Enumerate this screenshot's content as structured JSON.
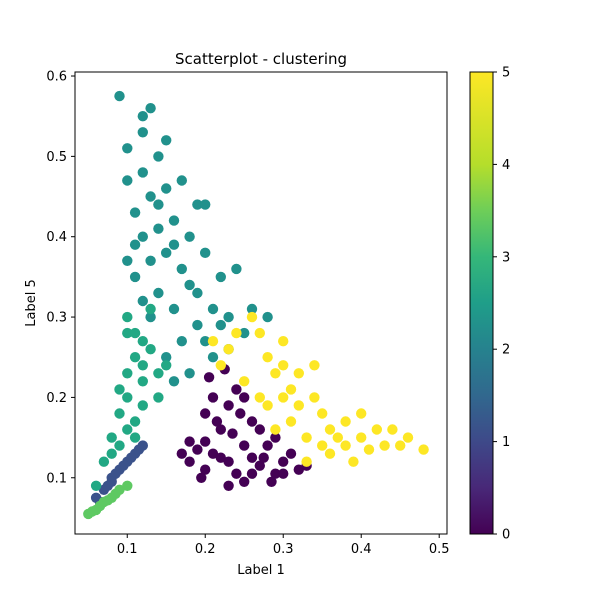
{
  "chart_data": {
    "type": "scatter",
    "title": "Scatterplot - clustering",
    "xlabel": "Label 1",
    "ylabel": "Label 5",
    "xlim": [
      0.033,
      0.51
    ],
    "ylim": [
      0.03,
      0.605
    ],
    "xticks": [
      0.1,
      0.2,
      0.3,
      0.4,
      0.5
    ],
    "xtick_labels": [
      "0.1",
      "0.2",
      "0.3",
      "0.4",
      "0.5"
    ],
    "yticks": [
      0.1,
      0.2,
      0.3,
      0.4,
      0.5,
      0.6
    ],
    "ytick_labels": [
      "0.1",
      "0.2",
      "0.3",
      "0.4",
      "0.5",
      "0.6"
    ],
    "grid": false,
    "colorbar": {
      "colormap": "viridis",
      "range": [
        0,
        5
      ],
      "ticks": [
        0,
        1,
        2,
        3,
        4,
        5
      ],
      "tick_labels": [
        "0",
        "1",
        "2",
        "3",
        "4",
        "5"
      ]
    },
    "clusters": [
      {
        "label": 0,
        "color": "#440154",
        "points": [
          [
            0.23,
            0.12
          ],
          [
            0.2,
            0.11
          ],
          [
            0.27,
            0.115
          ],
          [
            0.25,
            0.14
          ],
          [
            0.21,
            0.13
          ],
          [
            0.3,
            0.12
          ],
          [
            0.22,
            0.16
          ],
          [
            0.26,
            0.17
          ],
          [
            0.19,
            0.135
          ],
          [
            0.24,
            0.105
          ],
          [
            0.28,
            0.14
          ],
          [
            0.2,
            0.18
          ],
          [
            0.23,
            0.19
          ],
          [
            0.32,
            0.11
          ],
          [
            0.18,
            0.12
          ],
          [
            0.25,
            0.095
          ],
          [
            0.29,
            0.105
          ],
          [
            0.21,
            0.2
          ],
          [
            0.24,
            0.21
          ],
          [
            0.27,
            0.16
          ],
          [
            0.2,
            0.145
          ],
          [
            0.22,
            0.125
          ],
          [
            0.31,
            0.13
          ],
          [
            0.18,
            0.145
          ],
          [
            0.26,
            0.125
          ],
          [
            0.235,
            0.155
          ],
          [
            0.215,
            0.17
          ],
          [
            0.275,
            0.125
          ],
          [
            0.245,
            0.18
          ],
          [
            0.3,
            0.105
          ],
          [
            0.195,
            0.1
          ],
          [
            0.23,
            0.09
          ],
          [
            0.29,
            0.15
          ],
          [
            0.205,
            0.225
          ],
          [
            0.225,
            0.235
          ],
          [
            0.25,
            0.2
          ],
          [
            0.33,
            0.115
          ],
          [
            0.17,
            0.13
          ],
          [
            0.26,
            0.105
          ],
          [
            0.285,
            0.095
          ]
        ]
      },
      {
        "label": 1,
        "color": "#3b528b",
        "points": [
          [
            0.09,
            0.11
          ],
          [
            0.1,
            0.12
          ],
          [
            0.08,
            0.1
          ],
          [
            0.07,
            0.085
          ],
          [
            0.11,
            0.13
          ],
          [
            0.085,
            0.105
          ],
          [
            0.095,
            0.115
          ],
          [
            0.075,
            0.09
          ],
          [
            0.065,
            0.07
          ],
          [
            0.105,
            0.125
          ],
          [
            0.12,
            0.14
          ],
          [
            0.06,
            0.075
          ],
          [
            0.08,
            0.095
          ],
          [
            0.115,
            0.135
          ]
        ]
      },
      {
        "label": 2,
        "color": "#21918c",
        "points": [
          [
            0.12,
            0.4
          ],
          [
            0.13,
            0.45
          ],
          [
            0.15,
            0.38
          ],
          [
            0.11,
            0.35
          ],
          [
            0.14,
            0.5
          ],
          [
            0.16,
            0.42
          ],
          [
            0.1,
            0.51
          ],
          [
            0.12,
            0.55
          ],
          [
            0.09,
            0.575
          ],
          [
            0.13,
            0.3
          ],
          [
            0.17,
            0.36
          ],
          [
            0.19,
            0.33
          ],
          [
            0.21,
            0.31
          ],
          [
            0.18,
            0.4
          ],
          [
            0.15,
            0.46
          ],
          [
            0.11,
            0.43
          ],
          [
            0.14,
            0.33
          ],
          [
            0.2,
            0.38
          ],
          [
            0.22,
            0.35
          ],
          [
            0.23,
            0.3
          ],
          [
            0.25,
            0.28
          ],
          [
            0.17,
            0.27
          ],
          [
            0.15,
            0.25
          ],
          [
            0.19,
            0.44
          ],
          [
            0.12,
            0.48
          ],
          [
            0.16,
            0.31
          ],
          [
            0.13,
            0.37
          ],
          [
            0.24,
            0.36
          ],
          [
            0.1,
            0.47
          ],
          [
            0.12,
            0.53
          ],
          [
            0.18,
            0.34
          ],
          [
            0.2,
            0.27
          ],
          [
            0.22,
            0.29
          ],
          [
            0.26,
            0.31
          ],
          [
            0.14,
            0.41
          ],
          [
            0.11,
            0.39
          ],
          [
            0.15,
            0.52
          ],
          [
            0.13,
            0.56
          ],
          [
            0.17,
            0.47
          ],
          [
            0.19,
            0.29
          ],
          [
            0.21,
            0.25
          ],
          [
            0.23,
            0.26
          ],
          [
            0.16,
            0.22
          ],
          [
            0.18,
            0.23
          ],
          [
            0.2,
            0.44
          ],
          [
            0.12,
            0.32
          ],
          [
            0.14,
            0.44
          ],
          [
            0.16,
            0.39
          ],
          [
            0.1,
            0.37
          ],
          [
            0.28,
            0.3
          ]
        ]
      },
      {
        "label": 3,
        "color": "#22a884",
        "points": [
          [
            0.1,
            0.2
          ],
          [
            0.11,
            0.25
          ],
          [
            0.09,
            0.18
          ],
          [
            0.1,
            0.3
          ],
          [
            0.12,
            0.22
          ],
          [
            0.08,
            0.15
          ],
          [
            0.11,
            0.28
          ],
          [
            0.13,
            0.26
          ],
          [
            0.09,
            0.14
          ],
          [
            0.12,
            0.19
          ],
          [
            0.1,
            0.23
          ],
          [
            0.14,
            0.23
          ],
          [
            0.07,
            0.12
          ],
          [
            0.11,
            0.17
          ],
          [
            0.13,
            0.31
          ],
          [
            0.1,
            0.16
          ],
          [
            0.15,
            0.24
          ],
          [
            0.08,
            0.13
          ],
          [
            0.12,
            0.27
          ],
          [
            0.09,
            0.21
          ],
          [
            0.06,
            0.09
          ],
          [
            0.14,
            0.2
          ],
          [
            0.11,
            0.15
          ],
          [
            0.1,
            0.28
          ],
          [
            0.12,
            0.24
          ]
        ]
      },
      {
        "label": 4,
        "color": "#5ec962",
        "points": [
          [
            0.05,
            0.055
          ],
          [
            0.06,
            0.06
          ],
          [
            0.07,
            0.07
          ],
          [
            0.08,
            0.075
          ],
          [
            0.09,
            0.085
          ],
          [
            0.055,
            0.058
          ],
          [
            0.065,
            0.065
          ],
          [
            0.075,
            0.072
          ],
          [
            0.085,
            0.08
          ],
          [
            0.1,
            0.09
          ]
        ]
      },
      {
        "label": 5,
        "color": "#fde725",
        "points": [
          [
            0.3,
            0.2
          ],
          [
            0.35,
            0.18
          ],
          [
            0.4,
            0.15
          ],
          [
            0.45,
            0.14
          ],
          [
            0.48,
            0.135
          ],
          [
            0.28,
            0.25
          ],
          [
            0.32,
            0.23
          ],
          [
            0.38,
            0.17
          ],
          [
            0.42,
            0.16
          ],
          [
            0.25,
            0.22
          ],
          [
            0.27,
            0.28
          ],
          [
            0.33,
            0.15
          ],
          [
            0.36,
            0.13
          ],
          [
            0.39,
            0.12
          ],
          [
            0.3,
            0.27
          ],
          [
            0.26,
            0.3
          ],
          [
            0.29,
            0.23
          ],
          [
            0.34,
            0.2
          ],
          [
            0.37,
            0.15
          ],
          [
            0.44,
            0.16
          ],
          [
            0.41,
            0.135
          ],
          [
            0.31,
            0.17
          ],
          [
            0.35,
            0.14
          ],
          [
            0.23,
            0.26
          ],
          [
            0.22,
            0.24
          ],
          [
            0.28,
            0.19
          ],
          [
            0.32,
            0.19
          ],
          [
            0.38,
            0.14
          ],
          [
            0.43,
            0.14
          ],
          [
            0.46,
            0.15
          ],
          [
            0.24,
            0.28
          ],
          [
            0.27,
            0.2
          ],
          [
            0.31,
            0.21
          ],
          [
            0.34,
            0.24
          ],
          [
            0.36,
            0.16
          ],
          [
            0.33,
            0.12
          ],
          [
            0.29,
            0.16
          ],
          [
            0.4,
            0.18
          ],
          [
            0.21,
            0.27
          ],
          [
            0.3,
            0.24
          ]
        ]
      }
    ]
  }
}
